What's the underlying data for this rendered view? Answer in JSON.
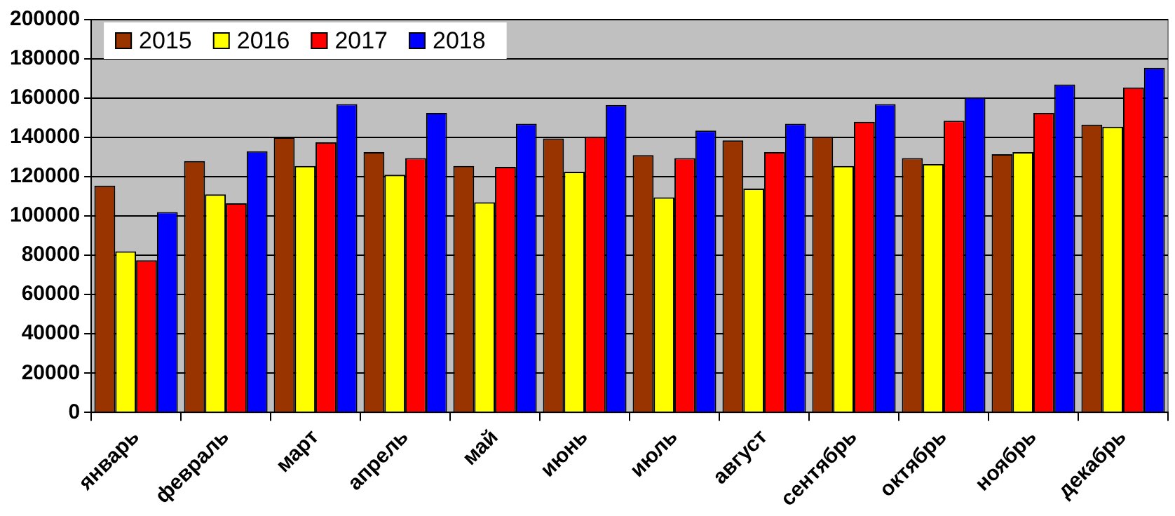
{
  "chart_data": {
    "type": "bar",
    "categories": [
      "январь",
      "февраль",
      "март",
      "апрель",
      "май",
      "июнь",
      "июль",
      "август",
      "сентябрь",
      "октябрь",
      "ноябрь",
      "декабрь"
    ],
    "series": [
      {
        "name": "2015",
        "color": "#993300",
        "values": [
          115500,
          128000,
          140000,
          132500,
          125500,
          139500,
          131000,
          138500,
          140500,
          129500,
          131500,
          146500
        ]
      },
      {
        "name": "2016",
        "color": "#ffff00",
        "values": [
          82000,
          111000,
          125500,
          121000,
          107000,
          122500,
          109500,
          114000,
          125500,
          126500,
          132500,
          145500
        ]
      },
      {
        "name": "2017",
        "color": "#ff0000",
        "values": [
          77500,
          106500,
          137500,
          129500,
          125000,
          140500,
          129500,
          132500,
          148000,
          148500,
          152500,
          165500
        ]
      },
      {
        "name": "2018",
        "color": "#0000ff",
        "values": [
          102000,
          133000,
          157000,
          152500,
          147000,
          156500,
          143500,
          147000,
          157000,
          160500,
          167000,
          175500
        ]
      }
    ],
    "ylim": [
      0,
      200000
    ],
    "yticks": [
      0,
      20000,
      40000,
      60000,
      80000,
      100000,
      120000,
      140000,
      160000,
      180000,
      200000
    ],
    "grid": "y",
    "legend": "top left"
  }
}
